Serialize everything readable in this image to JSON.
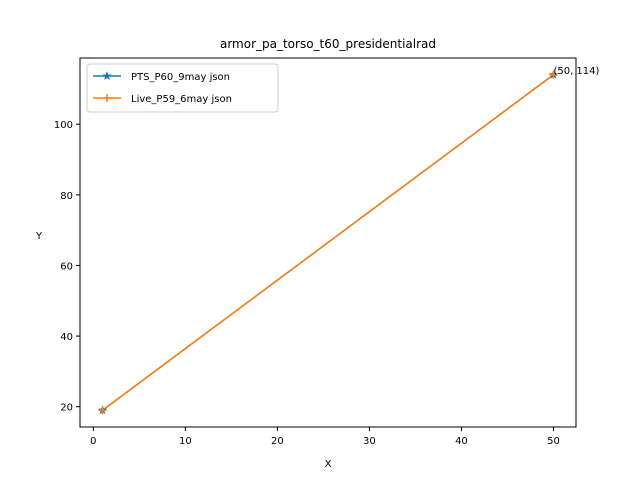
{
  "chart_data": {
    "type": "line",
    "title": "armor_pa_torso_t60_presidentialrad",
    "xlabel": "X",
    "ylabel": "Y",
    "xlim": [
      -1.45,
      52.45
    ],
    "ylim": [
      14.25,
      118.75
    ],
    "xticks": [
      0,
      10,
      20,
      30,
      40,
      50
    ],
    "yticks": [
      20,
      40,
      60,
      80,
      100
    ],
    "legend_position": "top-left",
    "grid": false,
    "series": [
      {
        "name": "PTS_P60_9may json",
        "color": "#1f77b4",
        "marker": "star",
        "x": [
          1,
          50
        ],
        "y": [
          19,
          114
        ]
      },
      {
        "name": "Live_P59_6may json",
        "color": "#ff7f0e",
        "marker": "plus",
        "x": [
          1,
          50
        ],
        "y": [
          19,
          114
        ]
      }
    ],
    "annotations": [
      {
        "text": "(50, 114)",
        "x": 50,
        "y": 114
      }
    ]
  }
}
